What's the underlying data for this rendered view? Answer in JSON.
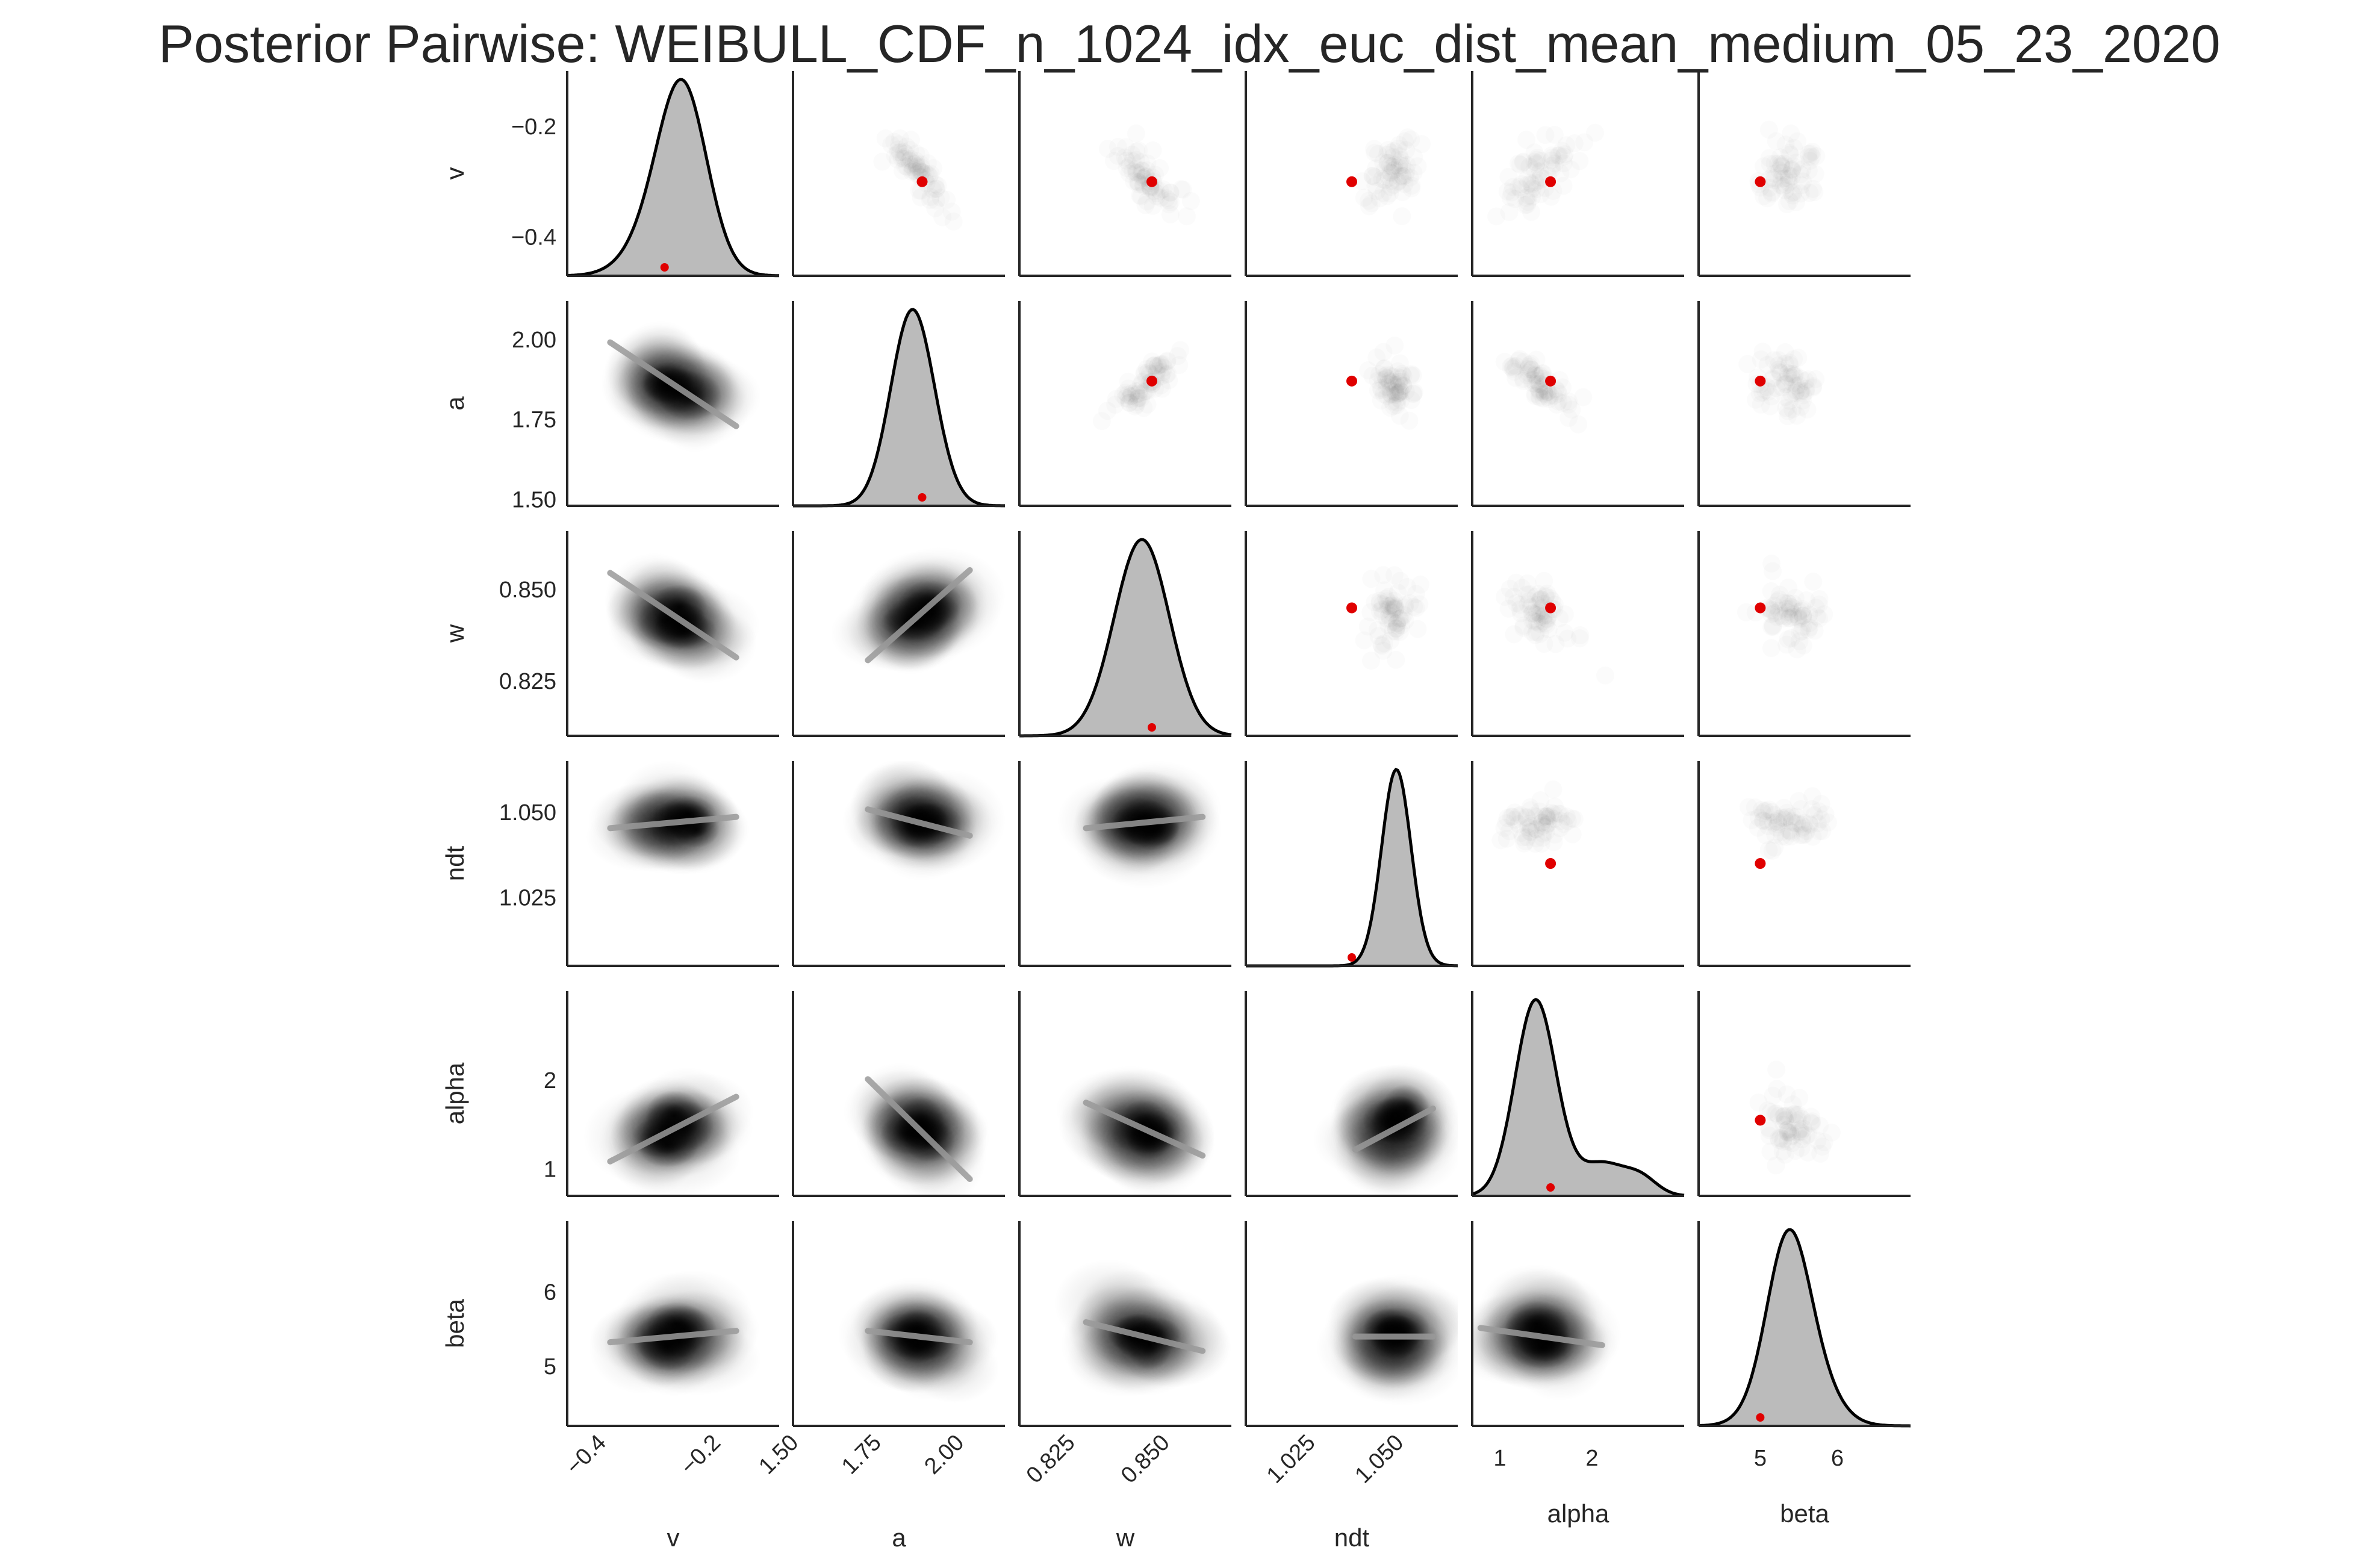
{
  "title": "Posterior Pairwise: WEIBULL_CDF_n_1024_idx_euc_dist_mean_medium_05_23_2020",
  "chart_data": {
    "type": "pairplot",
    "title": "Posterior Pairwise: WEIBULL_CDF_n_1024_idx_euc_dist_mean_medium_05_23_2020",
    "grid": false,
    "variables": [
      {
        "name": "v",
        "range": [
          -0.47,
          -0.1
        ],
        "ticks": [
          -0.4,
          -0.2
        ],
        "tick_labels": [
          "−0.4",
          "−0.2"
        ],
        "mean": -0.285,
        "sd": 0.05,
        "true": -0.3
      },
      {
        "name": "a",
        "range": [
          1.48,
          2.12
        ],
        "ticks": [
          1.5,
          1.75,
          2.0
        ],
        "tick_labels": [
          "1.50",
          "1.75",
          "2.00"
        ],
        "mean": 1.86,
        "sd": 0.07,
        "true": 1.87
      },
      {
        "name": "w",
        "range": [
          0.81,
          0.866
        ],
        "ticks": [
          0.825,
          0.85
        ],
        "tick_labels": [
          "0.825",
          "0.850"
        ],
        "mean": 0.843,
        "sd": 0.007,
        "true": 0.845
      },
      {
        "name": "ndt",
        "range": [
          1.005,
          1.065
        ],
        "ticks": [
          1.025,
          1.05
        ],
        "tick_labels": [
          "1.025",
          "1.050"
        ],
        "mean": 1.047,
        "sd": 0.005,
        "true": 1.035
      },
      {
        "name": "alpha",
        "range": [
          0.7,
          3.0
        ],
        "ticks": [
          1,
          2
        ],
        "tick_labels": [
          "1",
          "2"
        ],
        "mean": 1.45,
        "sd": 0.3,
        "true": 1.55
      },
      {
        "name": "beta",
        "range": [
          4.2,
          6.95
        ],
        "ticks": [
          5,
          6
        ],
        "tick_labels": [
          "5",
          "6"
        ],
        "mean": 5.4,
        "sd": 0.35,
        "true": 5.0
      }
    ],
    "diag": "kde",
    "lower": "kde_with_regression",
    "upper": "scatter_with_true_value",
    "true_value_color": "#e00000",
    "kde_color": "#000000",
    "fill_color": "#bbbbbb"
  }
}
